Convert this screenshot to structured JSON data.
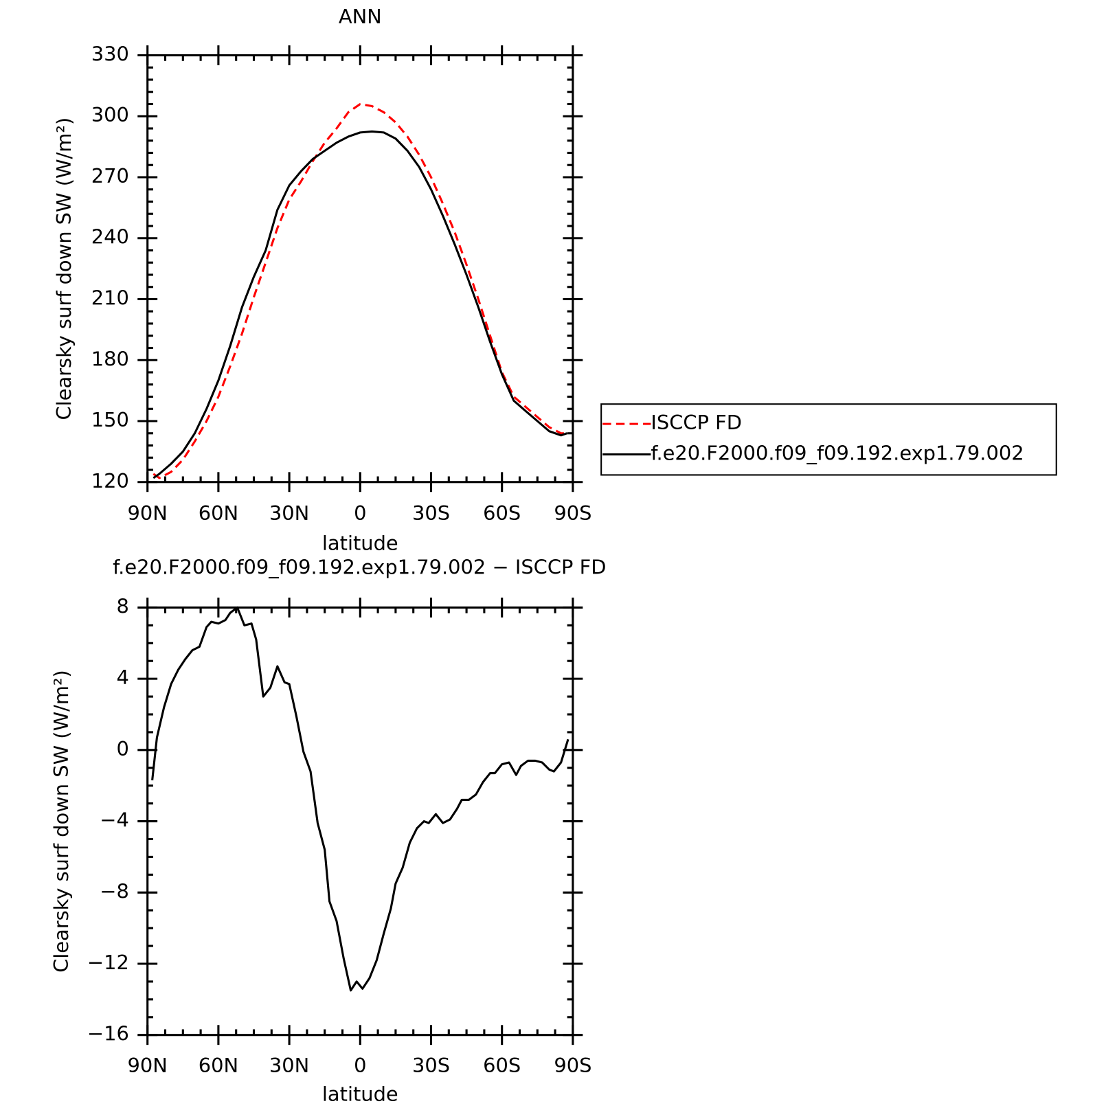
{
  "chart_data": [
    {
      "type": "line",
      "title": "ANN",
      "x_label": "latitude",
      "y_label": "Clearsky surf down SW (W/m²)",
      "xlim": [
        90,
        -90
      ],
      "xticks": [
        {
          "value": 90,
          "label": "90N"
        },
        {
          "value": 60,
          "label": "60N"
        },
        {
          "value": 30,
          "label": "30N"
        },
        0,
        {
          "value": -30,
          "label": "30S"
        },
        {
          "value": -60,
          "label": "60S"
        },
        {
          "value": -90,
          "label": "90S"
        }
      ],
      "ylim": [
        120,
        330
      ],
      "yticks": [
        120,
        150,
        180,
        210,
        240,
        270,
        300,
        330
      ],
      "legend": "right",
      "x": [
        87.5,
        85,
        80,
        75,
        70,
        65,
        60,
        55,
        50,
        45,
        40,
        35,
        30,
        25,
        20,
        15,
        10,
        5,
        0,
        -5,
        -10,
        -15,
        -20,
        -25,
        -30,
        -35,
        -40,
        -45,
        -50,
        -55,
        -60,
        -65,
        -70,
        -75,
        -80,
        -85,
        -87.5
      ],
      "series": [
        {
          "name": "ISCCP FD",
          "color": "#ff0000",
          "line_style": "dashed",
          "values": [
            124,
            122,
            125,
            131,
            140,
            150,
            162,
            177,
            193,
            211,
            228,
            245,
            259,
            268,
            278,
            287,
            294,
            302,
            306,
            305,
            302,
            297,
            290,
            281,
            270,
            257,
            243,
            227,
            210,
            192,
            174,
            162,
            157,
            152,
            147,
            144,
            144
          ]
        },
        {
          "name": "f.e20.F2000.f09_f09.192.exp1.79.002",
          "color": "#000000",
          "line_style": "solid",
          "values": [
            122,
            124,
            129,
            135,
            144,
            156,
            170,
            187,
            206,
            221,
            234,
            254,
            266,
            273,
            279,
            283,
            287,
            290,
            292,
            292.5,
            292,
            289,
            283,
            275,
            264,
            251,
            237,
            222,
            206,
            189,
            173,
            160,
            155,
            150,
            145,
            143,
            144
          ]
        }
      ]
    },
    {
      "type": "line",
      "title": "f.e20.F2000.f09_f09.192.exp1.79.002 − ISCCP FD",
      "x_label": "latitude",
      "y_label": "Clearsky surf down SW (W/m²)",
      "xlim": [
        90,
        -90
      ],
      "xticks": [
        {
          "value": 90,
          "label": "90N"
        },
        {
          "value": 60,
          "label": "60N"
        },
        {
          "value": 30,
          "label": "30N"
        },
        0,
        {
          "value": -30,
          "label": "30S"
        },
        {
          "value": -60,
          "label": "60S"
        },
        {
          "value": -90,
          "label": "90S"
        }
      ],
      "ylim": [
        -16,
        8
      ],
      "yticks": [
        {
          "value": -16,
          "label": "−16"
        },
        {
          "value": -12,
          "label": "−12"
        },
        {
          "value": -8,
          "label": "−8"
        },
        {
          "value": -4,
          "label": "−4"
        },
        0,
        4,
        8
      ],
      "color": "#000000",
      "x": [
        88,
        86,
        83,
        80,
        77,
        74,
        71,
        68,
        65,
        63,
        60,
        57,
        55,
        52,
        49,
        46,
        44,
        41,
        38,
        35,
        32,
        30,
        27,
        24,
        21,
        18,
        15,
        13,
        10,
        7,
        4,
        1.5,
        -1,
        -4,
        -7,
        -10,
        -13,
        -15,
        -18,
        -21,
        -24,
        -27,
        -29,
        -32,
        -35,
        -38,
        -41,
        -43,
        -46,
        -49,
        -52,
        -55,
        -57,
        -60,
        -63,
        -66,
        -68,
        -71,
        -74,
        -77,
        -80,
        -82,
        -85,
        -88
      ],
      "values": [
        -1.7,
        0.7,
        2.4,
        3.7,
        4.5,
        5.1,
        5.6,
        5.8,
        6.9,
        7.2,
        7.1,
        7.3,
        7.7,
        8.0,
        7.0,
        7.1,
        6.2,
        3.0,
        3.5,
        4.7,
        3.8,
        3.7,
        1.9,
        -0.1,
        -1.2,
        -4.1,
        -5.6,
        -8.5,
        -9.6,
        -11.7,
        -13.5,
        -13.0,
        -13.4,
        -12.8,
        -11.8,
        -10.3,
        -8.9,
        -7.5,
        -6.6,
        -5.2,
        -4.4,
        -4.0,
        -4.1,
        -3.6,
        -4.1,
        -3.9,
        -3.3,
        -2.8,
        -2.8,
        -2.5,
        -1.8,
        -1.3,
        -1.3,
        -0.8,
        -0.7,
        -1.4,
        -0.9,
        -0.6,
        -0.6,
        -0.7,
        -1.1,
        -1.2,
        -0.7,
        0.6
      ]
    }
  ]
}
